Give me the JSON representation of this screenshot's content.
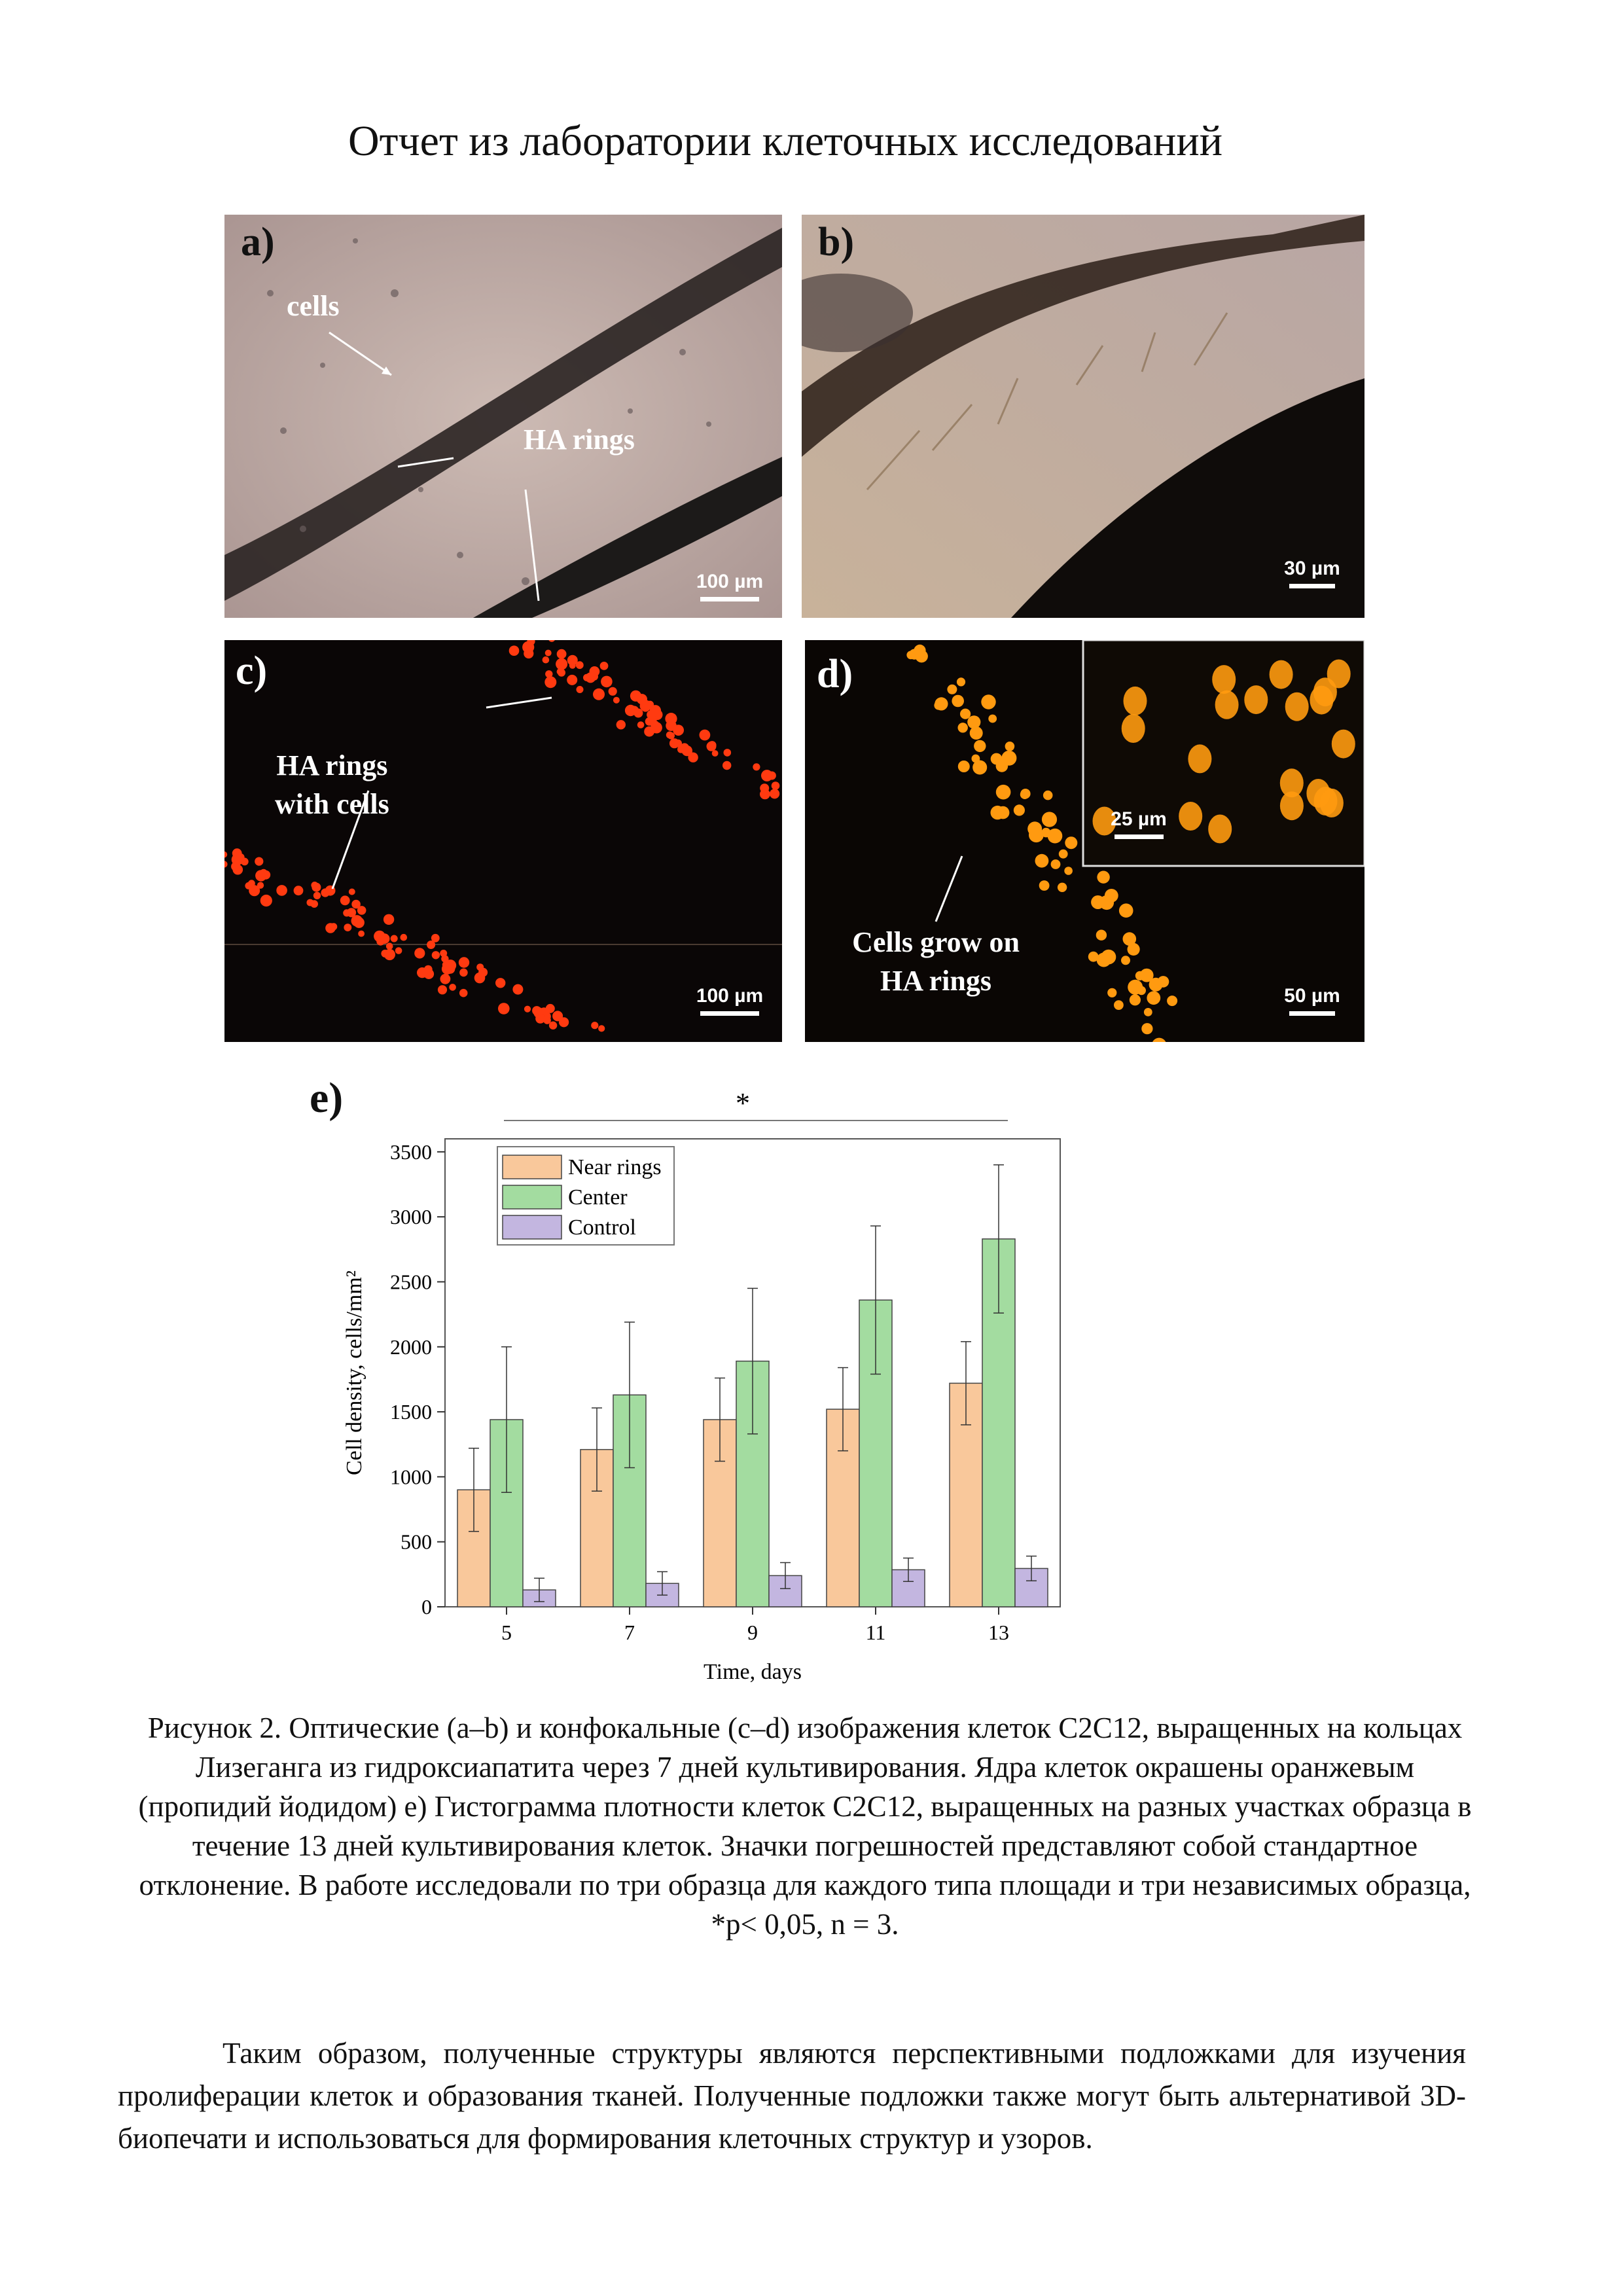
{
  "header": {
    "title": "Отчет из лаборатории клеточных исследований"
  },
  "panels": {
    "a": {
      "label": "a)",
      "annotations": [
        "cells",
        "HA rings"
      ],
      "scale": "100 µm"
    },
    "b": {
      "label": "b)",
      "scale": "30 µm"
    },
    "c": {
      "label": "c)",
      "annotation": "HA rings\nwith cells",
      "scale": "100 µm"
    },
    "d": {
      "label": "d)",
      "annotation": "Cells grow on\nHA rings",
      "scale": "50 µm",
      "inset_scale": "25 µm"
    },
    "e": {
      "label": "e)"
    }
  },
  "chart_data": {
    "type": "bar",
    "title": "",
    "xlabel": "Time, days",
    "ylabel": "Cell density, cells/mm²",
    "categories": [
      "5",
      "7",
      "9",
      "11",
      "13"
    ],
    "ylim": [
      0,
      3600
    ],
    "yticks": [
      0,
      500,
      1000,
      1500,
      2000,
      2500,
      3000,
      3500
    ],
    "series": [
      {
        "name": "Near rings",
        "color": "#f9c89b",
        "values": [
          900,
          1210,
          1440,
          1520,
          1720
        ],
        "errors": [
          320,
          320,
          320,
          320,
          320
        ]
      },
      {
        "name": "Center",
        "color": "#a3dca0",
        "values": [
          1440,
          1630,
          1890,
          2360,
          2830
        ],
        "errors": [
          560,
          560,
          560,
          570,
          570
        ]
      },
      {
        "name": "Control",
        "color": "#c3b6e0",
        "values": [
          130,
          180,
          240,
          285,
          295
        ],
        "errors": [
          90,
          90,
          100,
          90,
          95
        ]
      }
    ],
    "significance": "*",
    "legend": "top-left",
    "grid": false
  },
  "caption": "Рисунок 2. Оптические (a–b) и конфокальные (c–d) изображения клеток C2C12, выращенных на кольцах Лизеганга из гидроксиапатита через 7 дней культивирования. Ядра клеток окрашены оранжевым (пропидий йодидом) e) Гистограмма плотности клеток C2C12, выращенных на разных участках образца в течение 13 дней культивирования клеток. Значки погрешностей представляют собой стандартное отклонение. В работе исследовали по три образца для каждого типа площади и три независимых образца, *p< 0,05, n = 3.",
  "paragraph": "Таким образом, полученные структуры являются перспективными подложками для изучения пролиферации клеток и образования тканей. Полученные подложки также могут быть альтернативой 3D-биопечати и использоваться для формирования клеточных структур и узоров."
}
